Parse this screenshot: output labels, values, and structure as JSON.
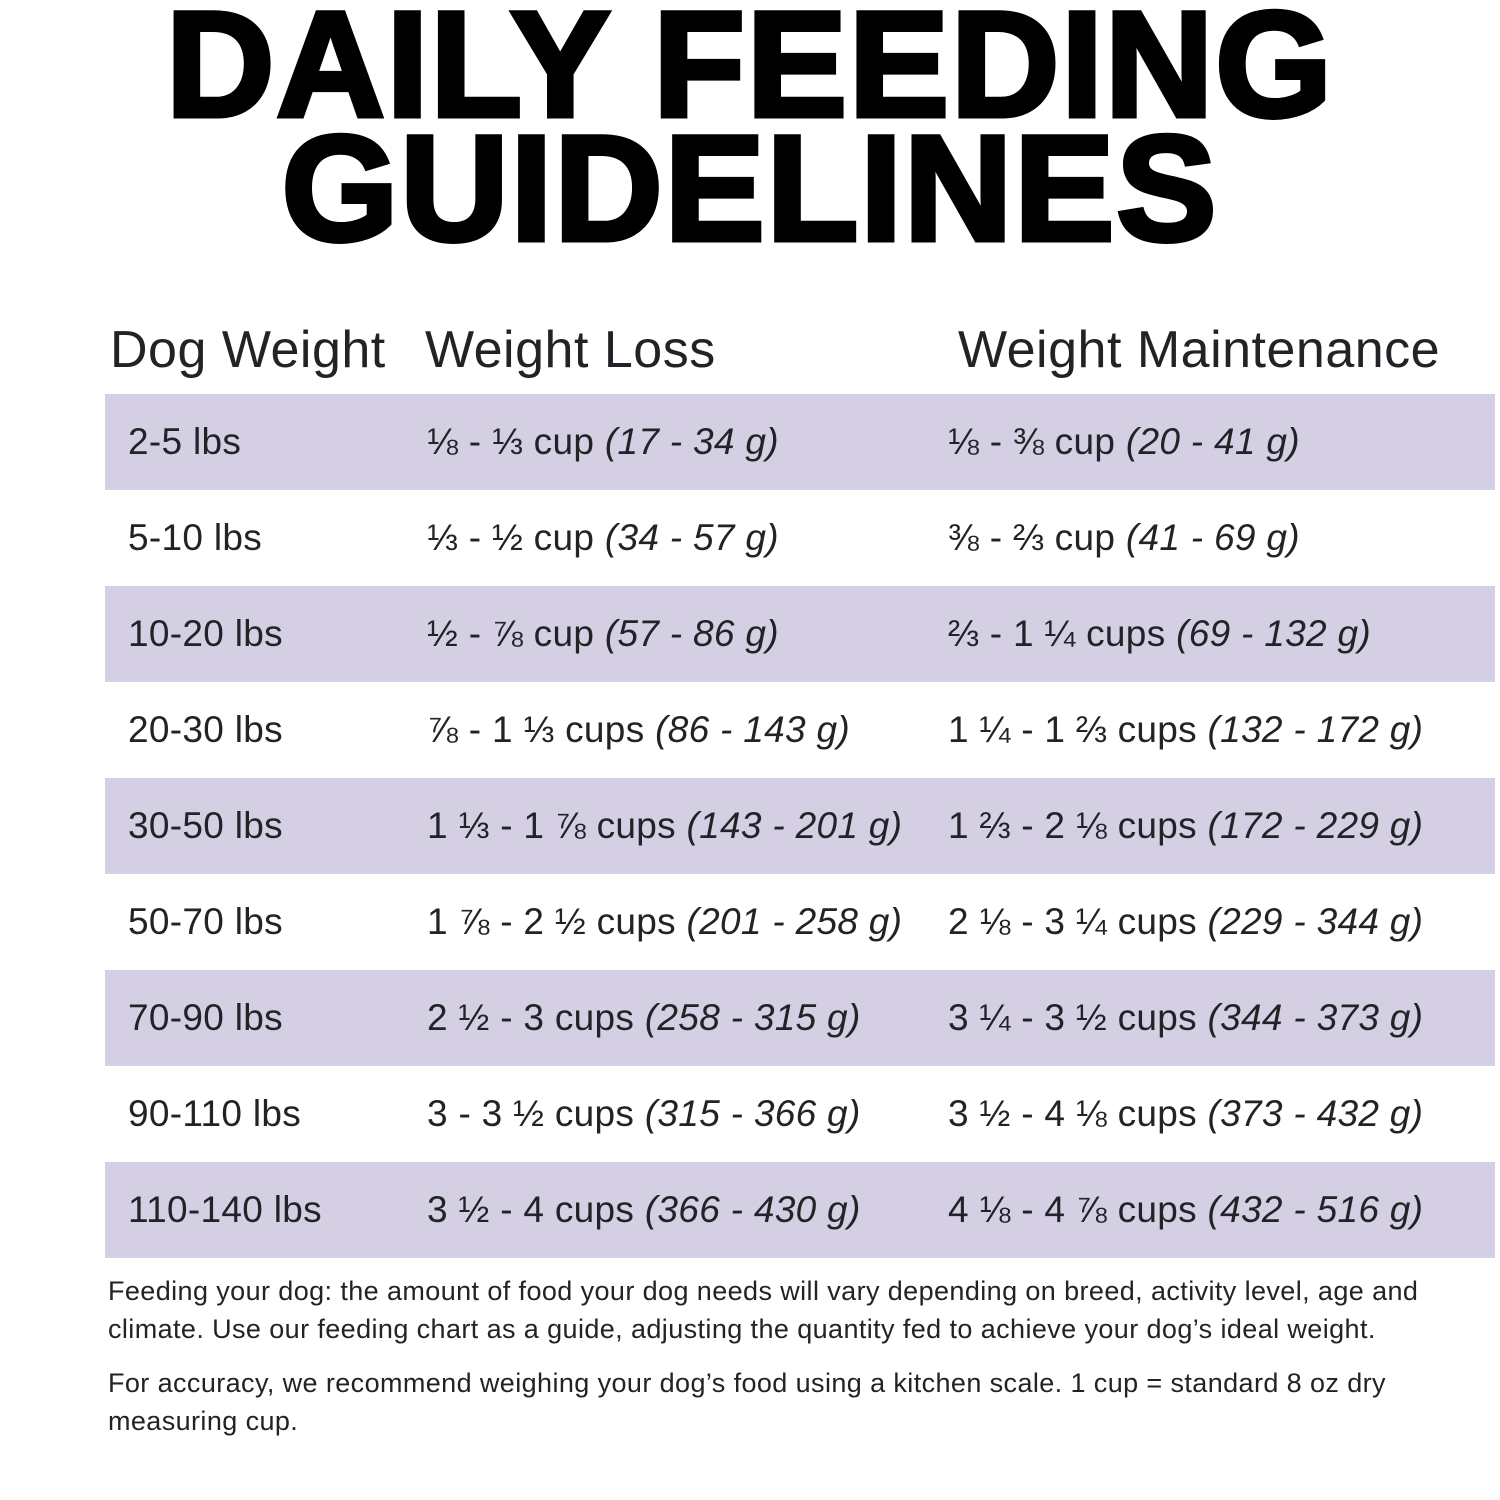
{
  "title": {
    "line1": "DAILY FEEDING",
    "line2": "GUIDELINES"
  },
  "table": {
    "stripe_color": "#d5cfe4",
    "headers": [
      "Dog Weight",
      "Weight Loss",
      "Weight Maintenance"
    ],
    "rows": [
      {
        "weight": "2-5 lbs",
        "loss_cups": "⅛ - ⅓ cup",
        "loss_grams": "(17 - 34 g)",
        "maintenance_cups": "⅛ - ⅜ cup",
        "maintenance_grams": "(20 - 41 g)"
      },
      {
        "weight": "5-10 lbs",
        "loss_cups": "⅓ - ½ cup",
        "loss_grams": "(34 - 57 g)",
        "maintenance_cups": "⅜ - ⅔ cup",
        "maintenance_grams": "(41 - 69 g)"
      },
      {
        "weight": "10-20 lbs",
        "loss_cups": "½ - ⅞ cup",
        "loss_grams": "(57 - 86 g)",
        "maintenance_cups": "⅔ - 1 ¼ cups",
        "maintenance_grams": "(69 - 132 g)"
      },
      {
        "weight": "20-30 lbs",
        "loss_cups": "⅞ - 1 ⅓ cups",
        "loss_grams": "(86 - 143 g)",
        "maintenance_cups": "1 ¼ - 1 ⅔ cups",
        "maintenance_grams": "(132 - 172 g)"
      },
      {
        "weight": "30-50 lbs",
        "loss_cups": "1 ⅓ - 1 ⅞ cups",
        "loss_grams": "(143 - 201 g)",
        "maintenance_cups": "1 ⅔ - 2 ⅛ cups",
        "maintenance_grams": "(172 - 229 g)"
      },
      {
        "weight": "50-70 lbs",
        "loss_cups": "1 ⅞ - 2 ½ cups",
        "loss_grams": "(201 - 258 g)",
        "maintenance_cups": "2 ⅛ - 3 ¼ cups",
        "maintenance_grams": "(229 - 344 g)"
      },
      {
        "weight": "70-90 lbs",
        "loss_cups": "2 ½ - 3 cups",
        "loss_grams": "(258 - 315 g)",
        "maintenance_cups": "3 ¼ - 3 ½ cups",
        "maintenance_grams": "(344 - 373 g)"
      },
      {
        "weight": "90-110 lbs",
        "loss_cups": "3 - 3 ½ cups",
        "loss_grams": "(315 - 366 g)",
        "maintenance_cups": "3 ½ - 4 ⅛ cups",
        "maintenance_grams": "(373 - 432 g)"
      },
      {
        "weight": "110-140 lbs",
        "loss_cups": "3 ½ - 4 cups",
        "loss_grams": "(366 - 430 g)",
        "maintenance_cups": "4 ⅛ - 4 ⅞ cups",
        "maintenance_grams": "(432 - 516 g)"
      }
    ]
  },
  "footer": {
    "paragraph1": "Feeding your dog: the amount of food your dog needs will vary depending on breed, activity level, age and climate. Use our feeding chart as a guide, adjusting the quantity fed to achieve your dog’s ideal weight.",
    "paragraph2": "For accuracy, we recommend weighing your dog’s food using a kitchen scale. 1 cup = standard 8 oz dry measuring cup."
  }
}
